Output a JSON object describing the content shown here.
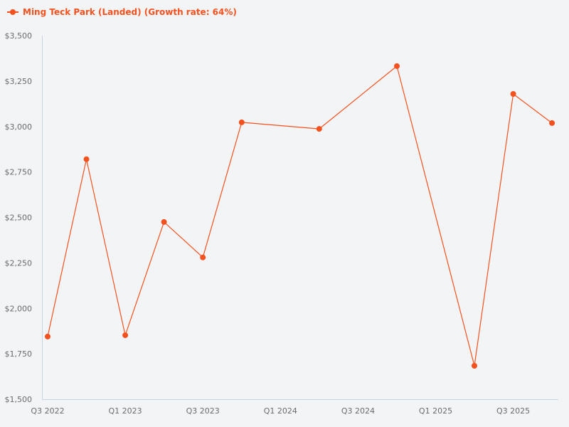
{
  "colors": {
    "background": "#f3f4f6",
    "series": "#f4511e",
    "axis": "#c9d3e6",
    "tick_text": "#6b6b6b"
  },
  "legend": {
    "label": "Ming Teck Park (Landed) (Growth rate: 64%)",
    "icon": "line-with-dot-icon"
  },
  "chart_data": {
    "type": "line",
    "title": "",
    "xlabel": "",
    "ylabel": "",
    "ylim": [
      1500,
      3500
    ],
    "y_ticks": [
      {
        "value": 1500,
        "label": "$1,500"
      },
      {
        "value": 1750,
        "label": "$1,750"
      },
      {
        "value": 2000,
        "label": "$2,000"
      },
      {
        "value": 2250,
        "label": "$2,250"
      },
      {
        "value": 2500,
        "label": "$2,500"
      },
      {
        "value": 2750,
        "label": "$2,750"
      },
      {
        "value": 3000,
        "label": "$3,000"
      },
      {
        "value": 3250,
        "label": "$3,250"
      },
      {
        "value": 3500,
        "label": "$3,500"
      }
    ],
    "x_ticks": [
      {
        "index": 0,
        "label": "Q3 2022"
      },
      {
        "index": 2,
        "label": "Q1 2023"
      },
      {
        "index": 4,
        "label": "Q3 2023"
      },
      {
        "index": 6,
        "label": "Q1 2024"
      },
      {
        "index": 8,
        "label": "Q3 2024"
      },
      {
        "index": 10,
        "label": "Q1 2025"
      },
      {
        "index": 12,
        "label": "Q3 2025"
      }
    ],
    "x_range_quarters": 14,
    "grid": false,
    "legend_position": "top-left",
    "series": [
      {
        "name": "Ming Teck Park (Landed) (Growth rate: 64%)",
        "points": [
          {
            "index": 0,
            "x": "Q3 2022",
            "y": 1845
          },
          {
            "index": 1,
            "x": "Q4 2022",
            "y": 2820
          },
          {
            "index": 2,
            "x": "Q1 2023",
            "y": 1852
          },
          {
            "index": 3,
            "x": "Q2 2023",
            "y": 2475
          },
          {
            "index": 4,
            "x": "Q3 2023",
            "y": 2280
          },
          {
            "index": 5,
            "x": "Q4 2023",
            "y": 3023
          },
          {
            "index": 7,
            "x": "Q2 2024",
            "y": 2987
          },
          {
            "index": 9,
            "x": "Q4 2024",
            "y": 3332
          },
          {
            "index": 11,
            "x": "Q2 2025",
            "y": 1684
          },
          {
            "index": 12,
            "x": "Q3 2025",
            "y": 3179
          },
          {
            "index": 13,
            "x": "Q4 2025",
            "y": 3019
          }
        ]
      }
    ]
  }
}
